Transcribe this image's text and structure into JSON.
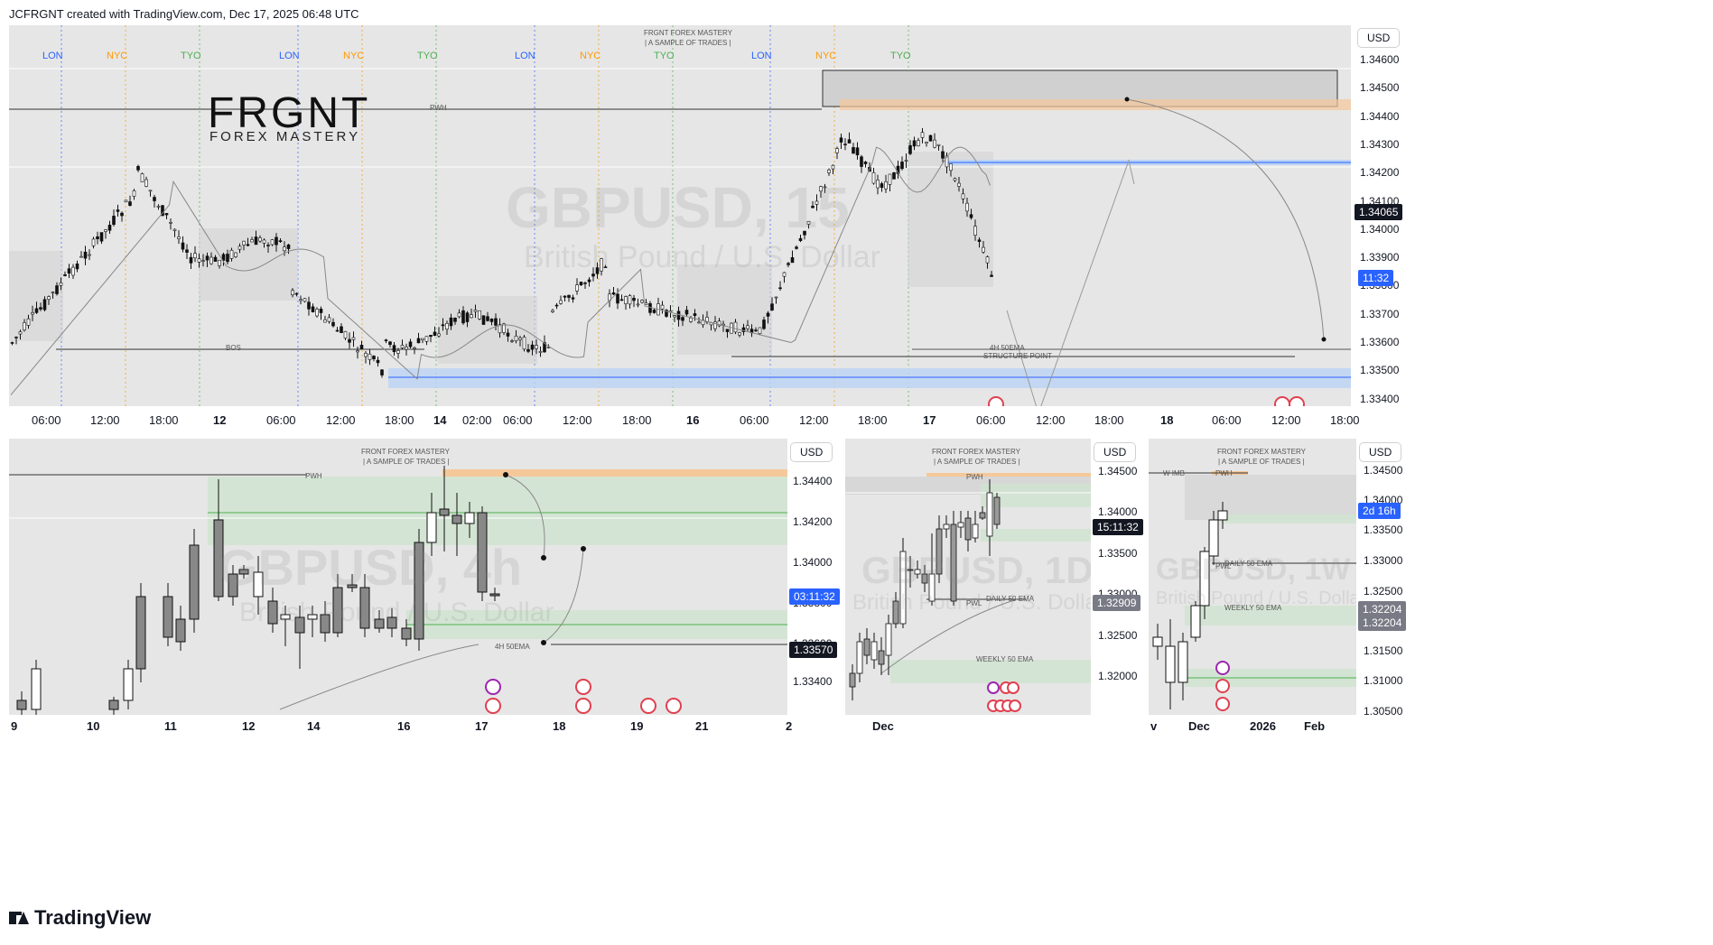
{
  "header": {
    "text": "JCFRGNT created with TradingView.com, Dec 17, 2025 06:48 UTC"
  },
  "footer": {
    "brand": "TradingView"
  },
  "brand_logo": {
    "title": "FRGNT",
    "subtitle": "FOREX MASTERY"
  },
  "main_chart": {
    "symbol": "GBPUSD, 15",
    "description": "British Pound / U.S. Dollar",
    "top_note_1": "FRGNT FOREX MASTERY",
    "top_note_2": "| A SAMPLE OF TRADES |",
    "currency": "USD",
    "price_labels": [
      "1.34600",
      "1.34500",
      "1.34400",
      "1.34300",
      "1.34200",
      "1.34100",
      "1.34000",
      "1.33900",
      "1.33800",
      "1.33700",
      "1.33600",
      "1.33500",
      "1.33400"
    ],
    "current_price": "1.34065",
    "countdown": "11:32",
    "time_labels": [
      "06:00",
      "12:00",
      "18:00",
      "12",
      "06:00",
      "12:00",
      "18:00",
      "14",
      "02:00",
      "06:00",
      "12:00",
      "18:00",
      "16",
      "06:00",
      "12:00",
      "18:00",
      "17",
      "06:00",
      "12:00",
      "18:00",
      "18",
      "06:00",
      "12:00",
      "18:00"
    ],
    "time_bold": [
      "12",
      "14",
      "16",
      "17",
      "18"
    ],
    "sessions": [
      "LON",
      "NYC",
      "TYO",
      "LON",
      "NYC",
      "TYO",
      "LON",
      "NYC",
      "TYO",
      "LON",
      "NYC",
      "TYO"
    ],
    "annotations": {
      "pwh": "PWH",
      "bos": "BOS",
      "ema": "4H 50EMA",
      "structure": "STRUCTURE POINT"
    },
    "colors": {
      "lon": "#2962ff",
      "nyc": "#ff9800",
      "tyo": "#4caf50",
      "current": "#131722",
      "countdown": "#2962ff",
      "supply": "#f5c89a",
      "demand": "#bcd3f5"
    }
  },
  "chart_4h": {
    "symbol": "GBPUSD, 4h",
    "description": "British Pound / U.S. Dollar",
    "top_note_1": "FRONT FOREX MASTERY",
    "top_note_2": "| A SAMPLE OF TRADES |",
    "currency": "USD",
    "price_labels": [
      "1.34400",
      "1.34200",
      "1.34000",
      "1.33800",
      "1.33600",
      "1.33400"
    ],
    "countdown": "03:11:32",
    "price_tag": "1.33570",
    "time_labels": [
      "9",
      "10",
      "11",
      "12",
      "14",
      "16",
      "17",
      "18",
      "19",
      "21",
      "2"
    ],
    "annotations": {
      "pwh": "PWH",
      "ema": "4H 50EMA"
    }
  },
  "chart_1d": {
    "symbol": "GBPUSD, 1D",
    "description": "British Pound / U.S. Dollar",
    "top_note_1": "FRONT FOREX MASTERY",
    "top_note_2": "| A SAMPLE OF TRADES |",
    "currency": "USD",
    "price_labels": [
      "1.34500",
      "1.34000",
      "1.33500",
      "1.33000",
      "1.32500",
      "1.32000"
    ],
    "countdown": "15:11:32",
    "price_tag": "1.32909",
    "time_labels": [
      "Dec"
    ],
    "annotations": {
      "pwh": "PWH",
      "pwl": "PWL",
      "daily_ema": "DAILY 50 EMA",
      "weekly_ema": "WEEKLY 50 EMA"
    }
  },
  "chart_1w": {
    "symbol": "GBPUSD, 1W",
    "description": "British Pound / U.S. Dollar",
    "top_note_1": "FRONT FOREX MASTERY",
    "top_note_2": "| A SAMPLE OF TRADES |",
    "currency": "USD",
    "price_labels": [
      "1.34500",
      "1.34000",
      "1.33500",
      "1.33000",
      "1.32500",
      "1.31500",
      "1.31000",
      "1.30500"
    ],
    "countdown": "2d 16h",
    "price_tag_1": "1.32204",
    "price_tag_2": "1.32204",
    "time_labels": [
      "v",
      "Dec",
      "2026",
      "Feb"
    ],
    "annotations": {
      "wimb": "W IMB",
      "pwh": "PWH",
      "pwl": "PWL",
      "daily_ema": "DAILY 50 EMA",
      "weekly_ema": "WEEKLY 50 EMA"
    }
  }
}
